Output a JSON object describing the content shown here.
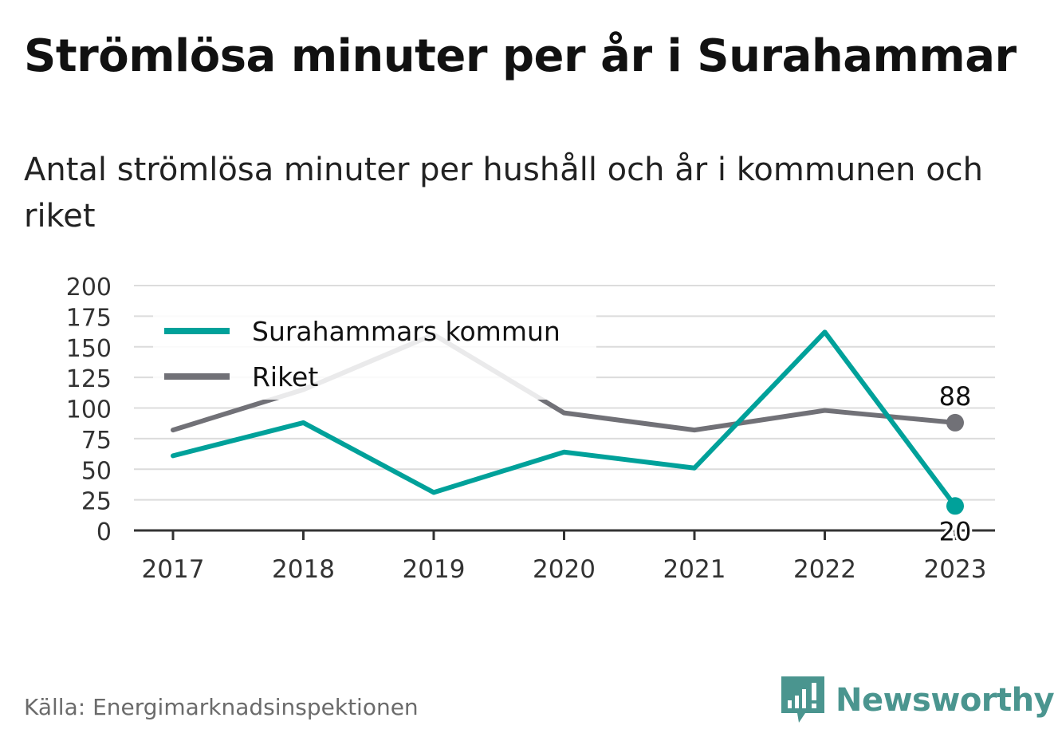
{
  "title": "Strömlösa minuter per år i Surahammar",
  "subtitle": "Antal strömlösa minuter per hushåll och år i kommunen och riket",
  "source": "Källa: Energimarknadsinspektionen",
  "brand": {
    "name": "Newsworthy",
    "icon": "newsworthy-logo-icon",
    "color": "#4a958f"
  },
  "chart_data": {
    "type": "line",
    "x": [
      "2017",
      "2018",
      "2019",
      "2020",
      "2021",
      "2022",
      "2023"
    ],
    "ylim": [
      0,
      200
    ],
    "yticks": [
      "0",
      "25",
      "50",
      "75",
      "100",
      "125",
      "150",
      "175",
      "200"
    ],
    "grid": true,
    "legend_position": "top-left",
    "series": [
      {
        "name": "Surahammars kommun",
        "color": "#00a19a",
        "values": [
          61,
          88,
          31,
          64,
          51,
          162,
          20
        ],
        "end_label": "20"
      },
      {
        "name": "Riket",
        "color": "#717177",
        "values": [
          82,
          115,
          160,
          96,
          82,
          98,
          88
        ],
        "end_label": "88"
      }
    ]
  }
}
